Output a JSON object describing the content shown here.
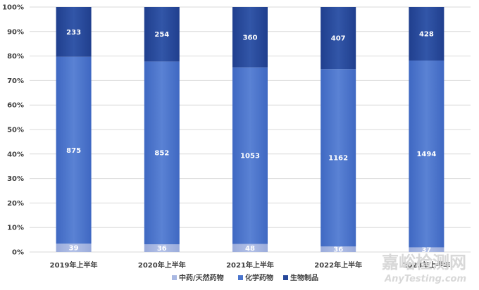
{
  "chart_data": {
    "type": "bar",
    "stacked": true,
    "normalized": true,
    "categories": [
      "2019年上半年",
      "2020年上半年",
      "2021年上半年",
      "2022年上半年",
      "2023年上半年"
    ],
    "series": [
      {
        "name": "中药/天然药物",
        "values": [
          39,
          36,
          48,
          36,
          37
        ],
        "color": "#a9b8e2"
      },
      {
        "name": "化学药物",
        "values": [
          875,
          852,
          1053,
          1162,
          1494
        ],
        "color": "#4a74cc"
      },
      {
        "name": "生物制品",
        "values": [
          233,
          254,
          360,
          407,
          428
        ],
        "color": "#27489a"
      }
    ],
    "y_ticks": [
      "0%",
      "10%",
      "20%",
      "30%",
      "40%",
      "50%",
      "60%",
      "70%",
      "80%",
      "90%",
      "100%"
    ],
    "ylim": [
      0,
      100
    ],
    "grid": true,
    "legend_position": "bottom"
  },
  "watermark": {
    "cn_text": "嘉峪检测网",
    "en_text": "AnyTesting.com"
  }
}
